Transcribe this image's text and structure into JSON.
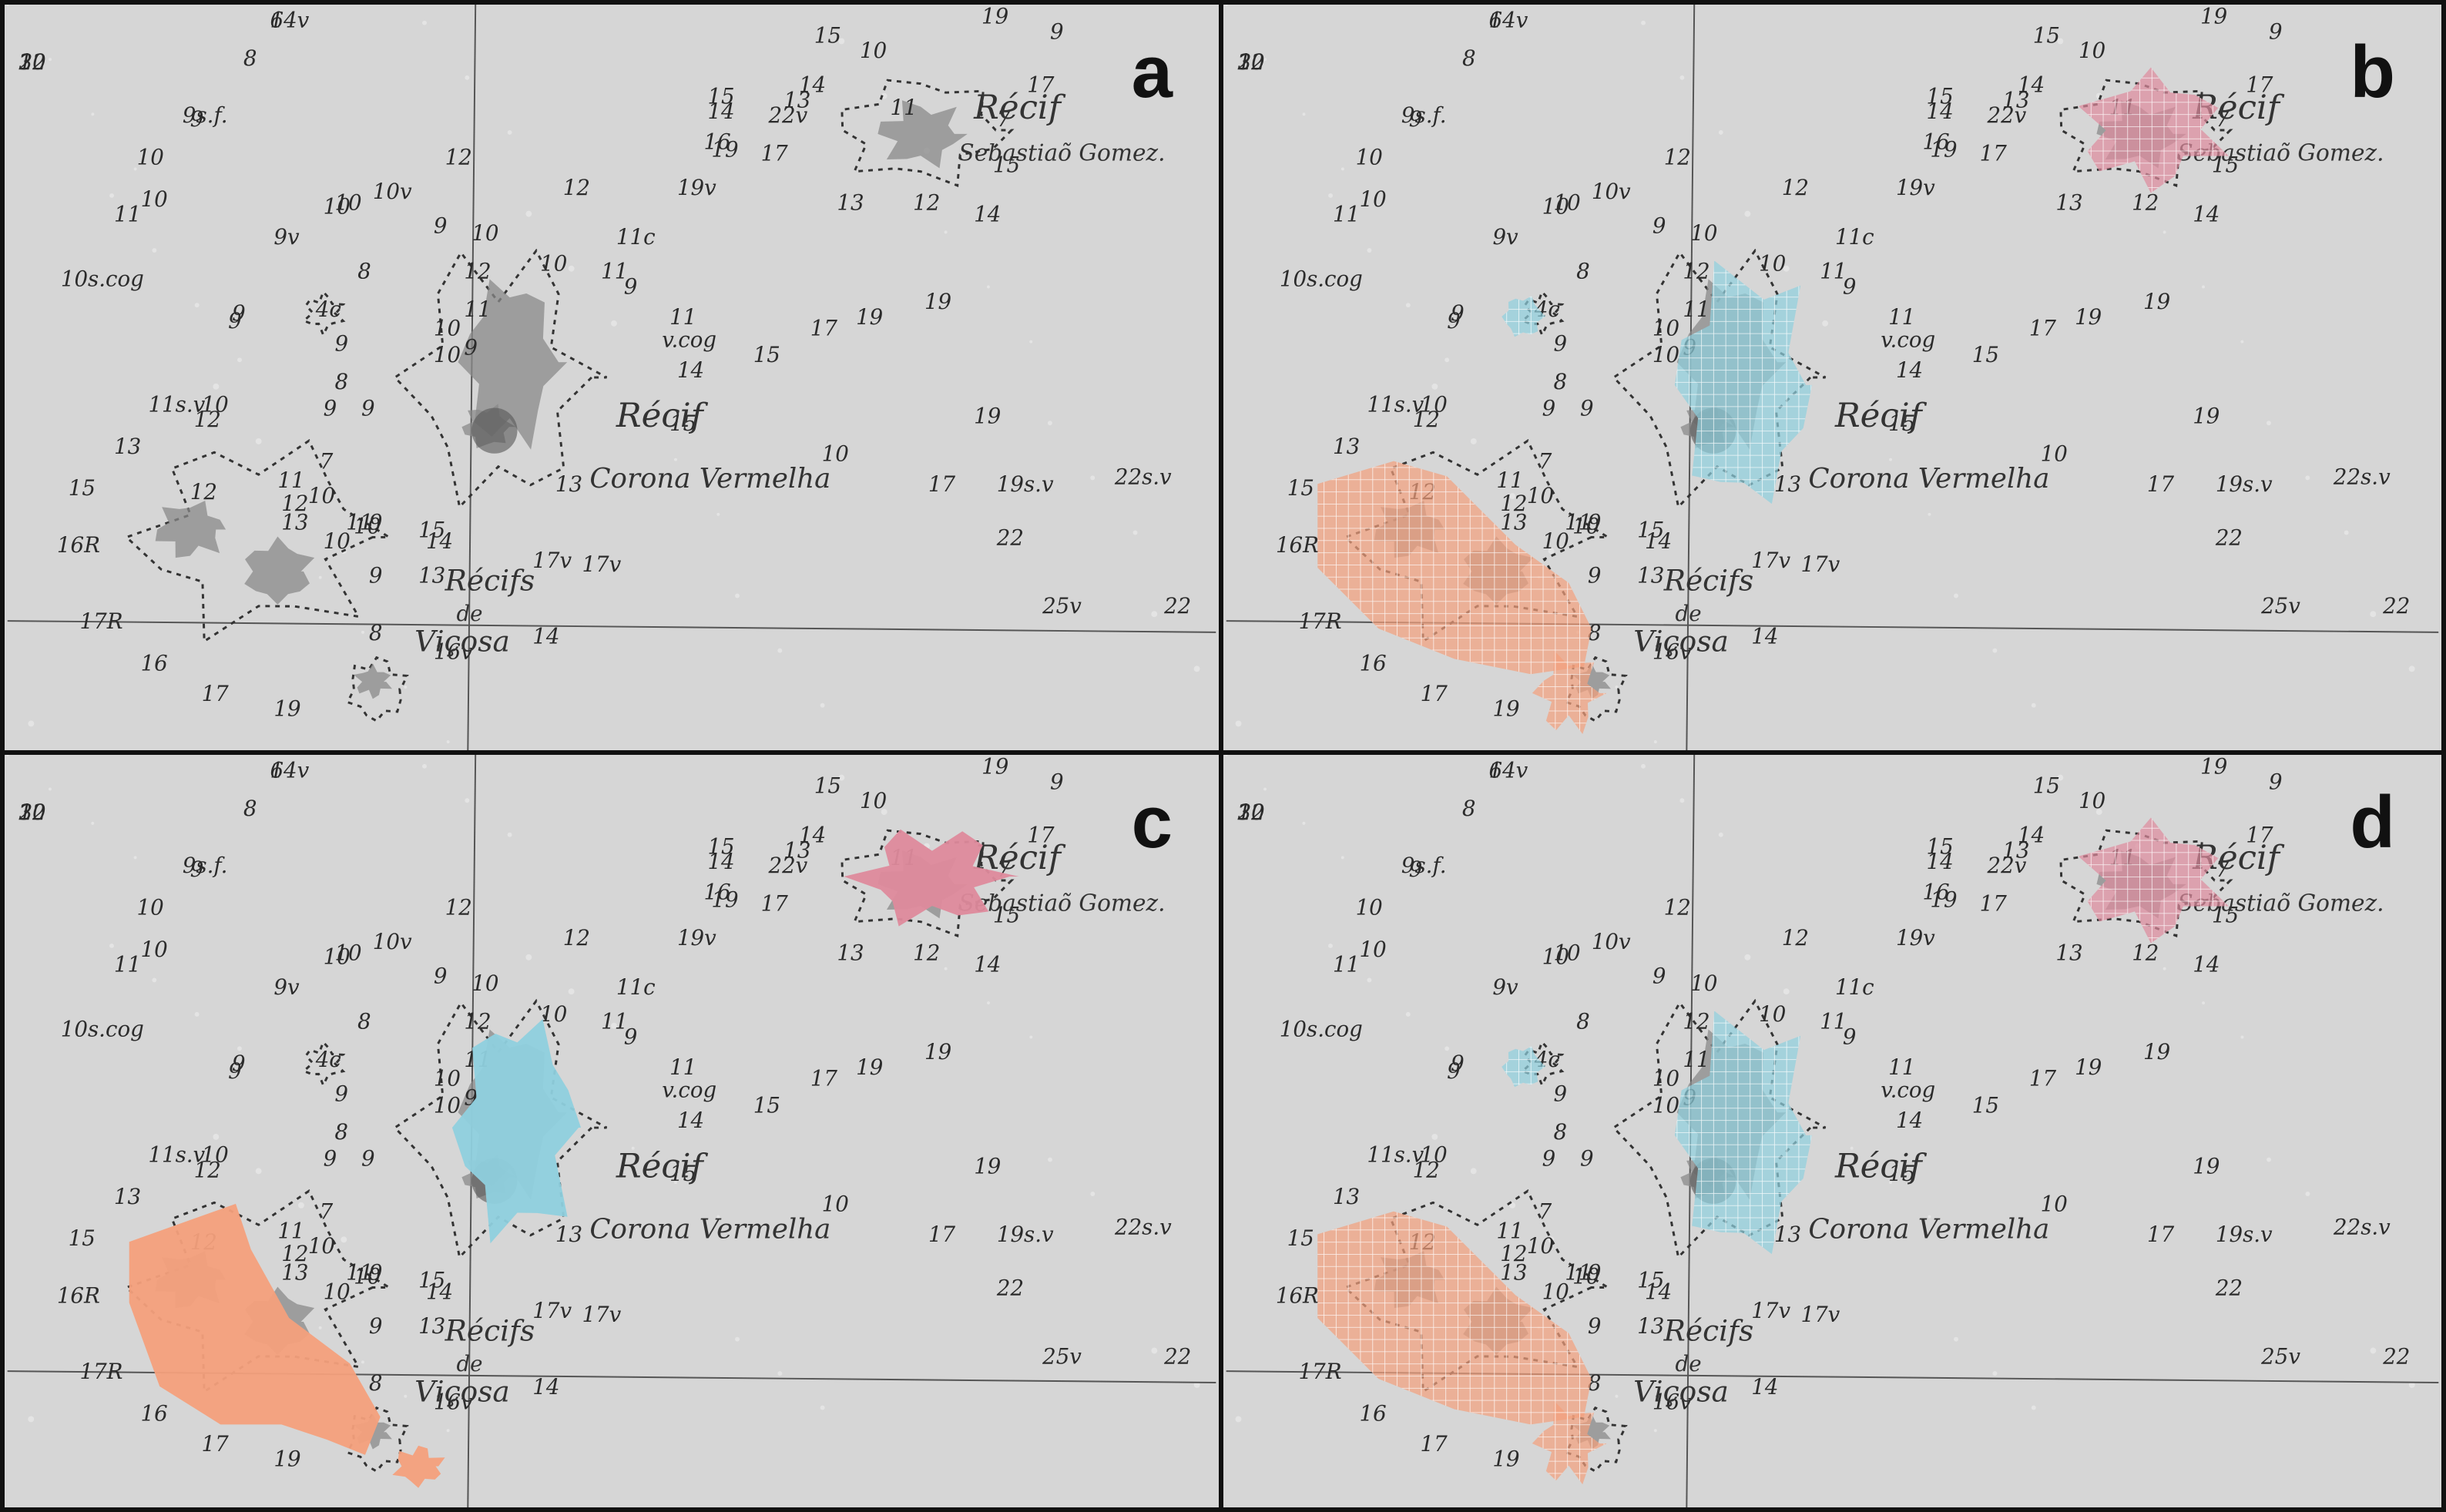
{
  "colors": {
    "paper": "#d6d6d6",
    "ink": "#2b2b2b",
    "border": "#111111",
    "coral": "#f4a07c",
    "cyan": "#8fd0de",
    "pink": "#de8a9c"
  },
  "panels": [
    {
      "id": "a",
      "letter": "a",
      "overlay": "none"
    },
    {
      "id": "b",
      "letter": "b",
      "overlay": "gridded"
    },
    {
      "id": "c",
      "letter": "c",
      "overlay": "solid"
    },
    {
      "id": "d",
      "letter": "d",
      "overlay": "gridded"
    }
  ],
  "map": {
    "place_labels": [
      {
        "text": "Récif"
      },
      {
        "text": "Sebastiaõ Gomez."
      },
      {
        "text": "Récif"
      },
      {
        "text": "Corona Vermelha"
      },
      {
        "text": "Récifs"
      },
      {
        "text": "de"
      },
      {
        "text": "Viçosa"
      }
    ],
    "soundings": [
      "3",
      "6",
      "8",
      "9",
      "9s.f.",
      "10",
      "10",
      "11",
      "10s.cog",
      "10",
      "10v",
      "12",
      "9v",
      "10",
      "9",
      "8",
      "4c",
      "9",
      "9",
      "8",
      "9",
      "9",
      "7",
      "11s.v",
      "10",
      "12",
      "13",
      "15",
      "12",
      "16R",
      "17R",
      "16",
      "17",
      "19",
      "13",
      "12",
      "11",
      "10",
      "10",
      "10",
      "11",
      "9",
      "9",
      "13",
      "14",
      "15",
      "8",
      "16v",
      "14",
      "17v",
      "17v",
      "13",
      "12",
      "11",
      "10",
      "11",
      "10",
      "10",
      "9",
      "9",
      "10",
      "12",
      "11c",
      "9",
      "11",
      "v.cog",
      "14",
      "15",
      "17",
      "19",
      "19",
      "19",
      "15",
      "10",
      "17",
      "19s.v",
      "22s.v",
      "22",
      "25v",
      "22",
      "22",
      "22v",
      "15",
      "10",
      "11",
      "13",
      "14",
      "17",
      "13",
      "12",
      "14",
      "19",
      "9",
      "17",
      "7",
      "15",
      "19",
      "19v",
      "16",
      "14",
      "15",
      "10",
      "14v"
    ]
  }
}
